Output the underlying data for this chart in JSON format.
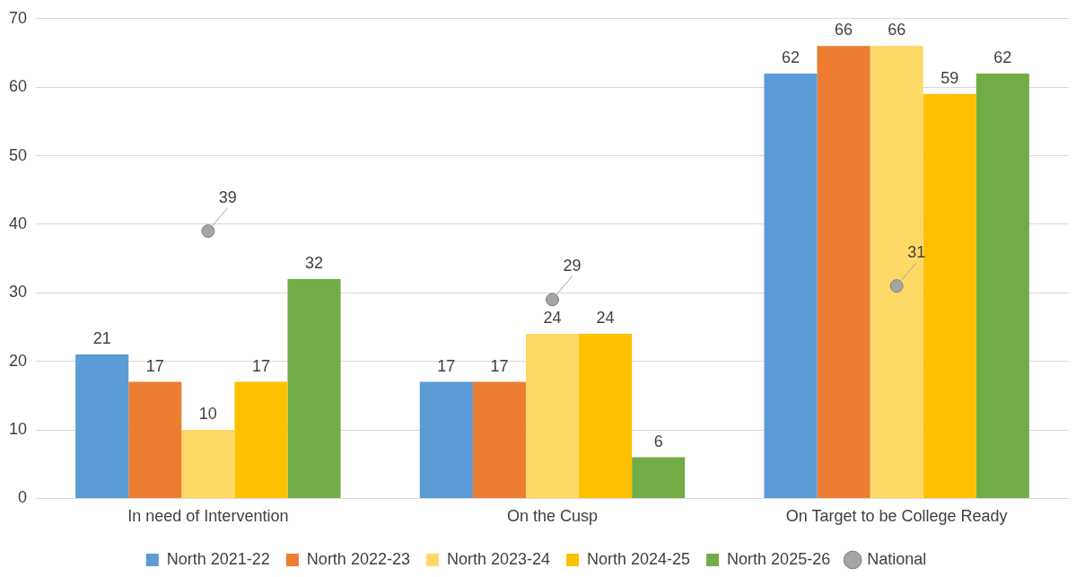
{
  "chart_data": {
    "type": "bar",
    "categories": [
      "In need of Intervention",
      "On the Cusp",
      "On Target to be College Ready"
    ],
    "series": [
      {
        "name": "North 2021-22",
        "color": "#5b9bd5",
        "values": [
          21,
          17,
          62
        ]
      },
      {
        "name": "North 2022-23",
        "color": "#ed7d31",
        "values": [
          17,
          17,
          66
        ]
      },
      {
        "name": "North 2023-24",
        "color": "#ffd966",
        "values": [
          10,
          24,
          66
        ]
      },
      {
        "name": "North 2024-25",
        "color": "#ffc000",
        "values": [
          17,
          24,
          59
        ]
      },
      {
        "name": "North 2025-26",
        "color": "#70ad47",
        "values": [
          32,
          6,
          62
        ]
      },
      {
        "name": "National",
        "type": "scatter",
        "color": "#a5a5a5",
        "x": [
          "In need of Intervention",
          "On the Cusp",
          "On Target to be College Ready"
        ],
        "values": [
          39,
          29,
          31
        ]
      }
    ],
    "ylim": [
      0,
      70
    ],
    "yticks": [
      0,
      10,
      20,
      30,
      40,
      50,
      60,
      70
    ],
    "grid": "y",
    "legend": "bottom",
    "data_labels": true,
    "marker": "circle"
  }
}
